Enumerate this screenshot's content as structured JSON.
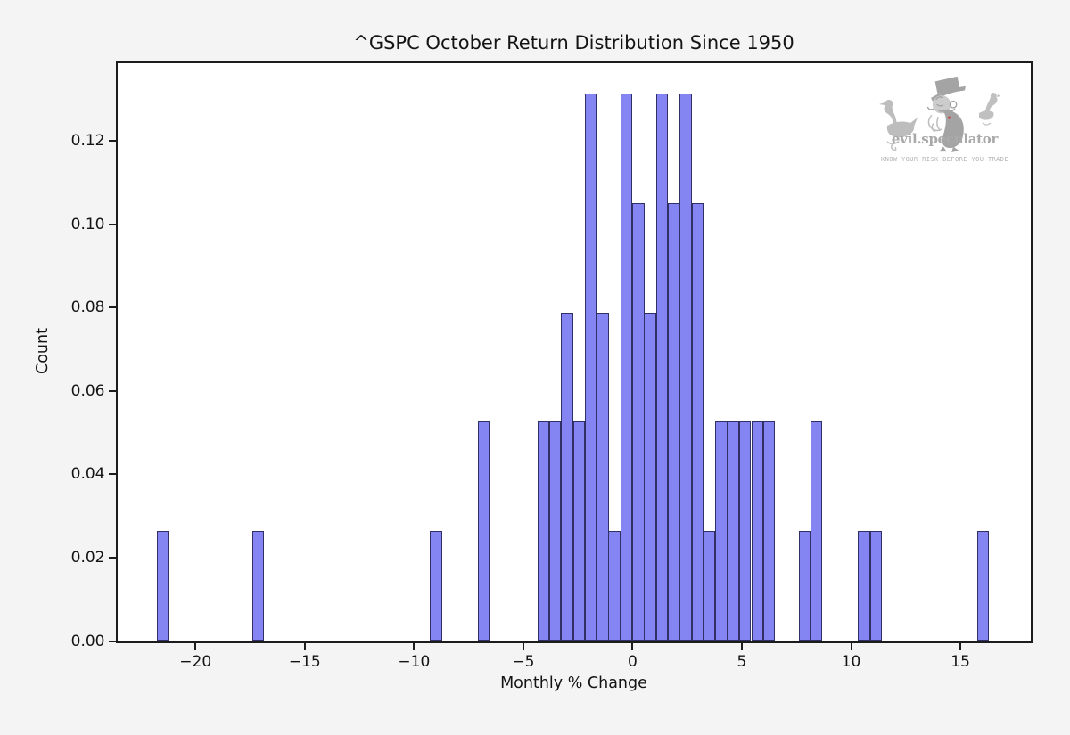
{
  "title": "^GSPC October Return Distribution Since 1950",
  "watermark": {
    "brand": "evil.speculator",
    "tagline": "KNOW YOUR RISK BEFORE YOU TRADE"
  },
  "chart_data": {
    "type": "bar",
    "histogram": true,
    "title": "^GSPC October Return Distribution Since 1950",
    "xlabel": "Monthly % Change",
    "ylabel": "Count",
    "xlim": [
      -23.58,
      18.22
    ],
    "ylim": [
      0,
      0.1386
    ],
    "grid": false,
    "legend": "none",
    "x_ticks": [
      -20,
      -15,
      -10,
      -5,
      0,
      5,
      10,
      15
    ],
    "x_tick_labels": [
      "−20",
      "−15",
      "−10",
      "−5",
      "0",
      "5",
      "10",
      "15"
    ],
    "y_ticks": [
      0.0,
      0.02,
      0.04,
      0.06,
      0.08,
      0.1,
      0.12
    ],
    "y_tick_labels": [
      "0.00",
      "0.02",
      "0.04",
      "0.06",
      "0.08",
      "0.10",
      "0.12"
    ],
    "bin_width": 0.5437,
    "bar_color": "#8484f2",
    "bar_edge_color": "#20204a",
    "bins": [
      {
        "left": -21.76,
        "count": 1,
        "density": 0.0263
      },
      {
        "left": -17.41,
        "count": 1,
        "density": 0.0263
      },
      {
        "left": -9.26,
        "count": 1,
        "density": 0.0263
      },
      {
        "left": -7.08,
        "count": 2,
        "density": 0.0526
      },
      {
        "left": -4.36,
        "count": 2,
        "density": 0.0526
      },
      {
        "left": -3.82,
        "count": 2,
        "density": 0.0526
      },
      {
        "left": -3.27,
        "count": 3,
        "density": 0.0788
      },
      {
        "left": -2.73,
        "count": 2,
        "density": 0.0526
      },
      {
        "left": -2.19,
        "count": 5,
        "density": 0.1314
      },
      {
        "left": -1.64,
        "count": 3,
        "density": 0.0788
      },
      {
        "left": -1.1,
        "count": 1,
        "density": 0.0263
      },
      {
        "left": -0.56,
        "count": 5,
        "density": 0.1314
      },
      {
        "left": -0.01,
        "count": 4,
        "density": 0.1051
      },
      {
        "left": 0.53,
        "count": 3,
        "density": 0.0788
      },
      {
        "left": 1.08,
        "count": 5,
        "density": 0.1314
      },
      {
        "left": 1.62,
        "count": 4,
        "density": 0.1051
      },
      {
        "left": 2.16,
        "count": 5,
        "density": 0.1314
      },
      {
        "left": 2.71,
        "count": 4,
        "density": 0.1051
      },
      {
        "left": 3.25,
        "count": 1,
        "density": 0.0263
      },
      {
        "left": 3.79,
        "count": 2,
        "density": 0.0526
      },
      {
        "left": 4.34,
        "count": 2,
        "density": 0.0526
      },
      {
        "left": 4.88,
        "count": 2,
        "density": 0.0526
      },
      {
        "left": 5.43,
        "count": 2,
        "density": 0.0526
      },
      {
        "left": 5.97,
        "count": 2,
        "density": 0.0526
      },
      {
        "left": 7.6,
        "count": 1,
        "density": 0.0263
      },
      {
        "left": 8.14,
        "count": 2,
        "density": 0.0526
      },
      {
        "left": 10.32,
        "count": 1,
        "density": 0.0263
      },
      {
        "left": 10.86,
        "count": 1,
        "density": 0.0263
      },
      {
        "left": 15.76,
        "count": 1,
        "density": 0.0263
      }
    ]
  }
}
